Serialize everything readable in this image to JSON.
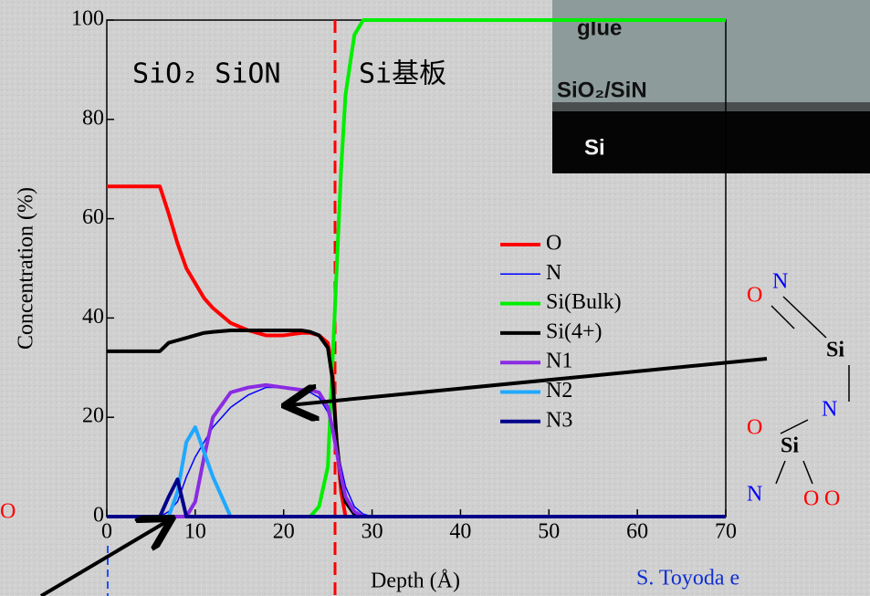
{
  "chart_data": {
    "type": "line",
    "x_label": "Depth (Å)",
    "y_label": "Concentration (%)",
    "xlim": [
      0,
      70
    ],
    "ylim": [
      0,
      100
    ],
    "xticks": [
      0,
      10,
      20,
      30,
      40,
      50,
      60,
      70
    ],
    "yticks": [
      0,
      20,
      40,
      60,
      80,
      100
    ],
    "annotations": [
      "SiO₂ SiON",
      "Si基板"
    ],
    "x": [
      0,
      2,
      4,
      6,
      7,
      8,
      9,
      10,
      11,
      12,
      14,
      16,
      18,
      20,
      22,
      23,
      24,
      25,
      25.5,
      26,
      26.5,
      27,
      28,
      29,
      30,
      40,
      50,
      60,
      70
    ],
    "series": [
      {
        "name": "O",
        "color": "#ff0000",
        "width": 4,
        "values": [
          66.5,
          66.5,
          66.5,
          66.5,
          61,
          55,
          50,
          47,
          44,
          42,
          39,
          37.5,
          36.5,
          36.5,
          37,
          37,
          36.5,
          35,
          30,
          15,
          5,
          0,
          0,
          0,
          0,
          0,
          0,
          0,
          0
        ]
      },
      {
        "name": "N",
        "color": "#0000ff",
        "width": 1.5,
        "values": [
          0,
          0,
          0,
          0,
          1,
          3,
          8,
          12,
          15,
          18,
          22,
          24.5,
          26,
          26,
          25.5,
          25,
          24,
          21,
          18,
          14,
          10,
          6,
          2,
          0.5,
          0,
          0,
          0,
          0,
          0
        ]
      },
      {
        "name": "Si(Bulk)",
        "color": "#00ee00",
        "width": 4,
        "values": [
          0,
          0,
          0,
          0,
          0,
          0,
          0,
          0,
          0,
          0,
          0,
          0,
          0,
          0,
          0,
          0,
          2,
          10,
          30,
          50,
          70,
          85,
          97,
          100,
          100,
          100,
          100,
          100,
          100
        ]
      },
      {
        "name": "Si(4+)",
        "color": "#000000",
        "width": 4,
        "values": [
          33.3,
          33.3,
          33.3,
          33.3,
          35,
          35.5,
          36,
          36.5,
          37,
          37.2,
          37.5,
          37.5,
          37.5,
          37.5,
          37.5,
          37.2,
          36.5,
          34,
          28,
          15,
          7,
          3,
          0.5,
          0,
          0,
          0,
          0,
          0,
          0
        ]
      },
      {
        "name": "N1",
        "color": "#8a2be2",
        "width": 4,
        "values": [
          0,
          0,
          0,
          0,
          0,
          0,
          0,
          3,
          12,
          20,
          25,
          26,
          26.5,
          26,
          25.5,
          25.5,
          25,
          22,
          18,
          13,
          8,
          4,
          1,
          0,
          0,
          0,
          0,
          0,
          0
        ]
      },
      {
        "name": "N2",
        "color": "#1fa8ff",
        "width": 4,
        "values": [
          0,
          0,
          0,
          0,
          0,
          5,
          15,
          18,
          13,
          8,
          0,
          0,
          0,
          0,
          0,
          0,
          0,
          0,
          0,
          0,
          0,
          0,
          0,
          0,
          0,
          0,
          0,
          0,
          0
        ]
      },
      {
        "name": "N3",
        "color": "#00008b",
        "width": 4,
        "values": [
          0,
          0,
          0,
          0,
          4,
          7.5,
          0,
          0,
          0,
          0,
          0,
          0,
          0,
          0,
          0,
          0,
          0,
          0,
          0,
          0,
          0,
          0,
          0,
          0,
          0,
          0,
          0,
          0,
          0
        ]
      }
    ]
  },
  "inset": {
    "labels": [
      "glue",
      "SiO₂/SiN",
      "Si"
    ]
  },
  "molecule": {
    "atoms": [
      "O",
      "N",
      "Si",
      "N",
      "O",
      "Si",
      "N",
      "O",
      "O"
    ]
  },
  "left_label": "O",
  "citation": "S. Toyoda e"
}
